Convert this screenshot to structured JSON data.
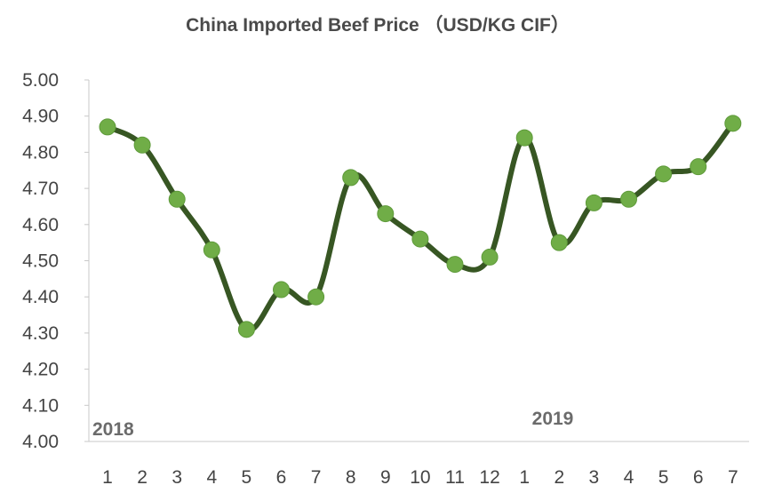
{
  "chart_data": {
    "type": "line",
    "title": "China Imported Beef Price （USD/KG CIF）",
    "xlabel": "",
    "ylabel": "",
    "ylim": [
      4.0,
      5.0
    ],
    "yticks": [
      "5.00",
      "4.90",
      "4.80",
      "4.70",
      "4.60",
      "4.50",
      "4.40",
      "4.30",
      "4.20",
      "4.10",
      "4.00"
    ],
    "categories": [
      "1",
      "2",
      "3",
      "4",
      "5",
      "6",
      "7",
      "8",
      "9",
      "10",
      "11",
      "12",
      "1",
      "2",
      "3",
      "4",
      "5",
      "6",
      "7"
    ],
    "year_labels": [
      {
        "text": "2018",
        "category_index": 0
      },
      {
        "text": "2019",
        "category_index": 12
      }
    ],
    "series": [
      {
        "values": [
          4.87,
          4.82,
          4.67,
          4.53,
          4.31,
          4.42,
          4.4,
          4.73,
          4.63,
          4.56,
          4.49,
          4.51,
          4.84,
          4.55,
          4.66,
          4.67,
          4.74,
          4.76,
          4.88
        ]
      }
    ],
    "grid": false,
    "line_color": "#375623",
    "marker_color": "#70ad47"
  }
}
